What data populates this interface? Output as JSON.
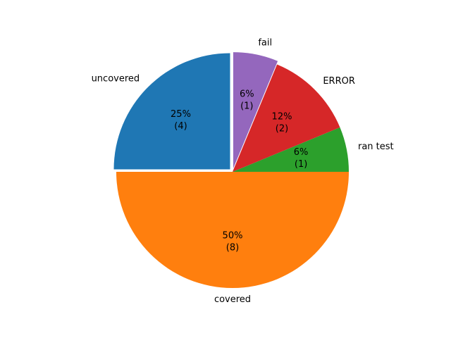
{
  "chart_data": {
    "type": "pie",
    "slices": [
      {
        "label": "uncovered",
        "value": 4,
        "percent_label": "25%",
        "count_label": "(4)",
        "color": "#1f77b4",
        "exploded": true
      },
      {
        "label": "covered",
        "value": 8,
        "percent_label": "50%",
        "count_label": "(8)",
        "color": "#ff7f0e",
        "exploded": false
      },
      {
        "label": "ran test",
        "value": 1,
        "percent_label": "6%",
        "count_label": "(1)",
        "color": "#2ca02c",
        "exploded": false
      },
      {
        "label": "ERROR",
        "value": 2,
        "percent_label": "12%",
        "count_label": "(2)",
        "color": "#d62728",
        "exploded": false
      },
      {
        "label": "fail",
        "value": 1,
        "percent_label": "6%",
        "count_label": "(1)",
        "color": "#9467bd",
        "exploded": true
      }
    ],
    "start_angle_deg": 90,
    "direction": "counterclockwise",
    "legend": "none",
    "title": ""
  }
}
